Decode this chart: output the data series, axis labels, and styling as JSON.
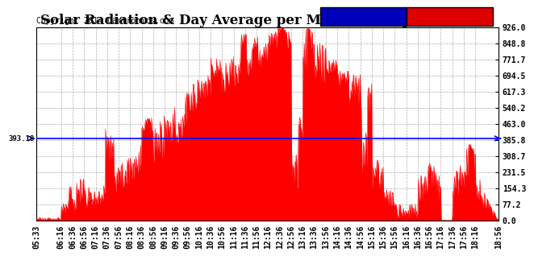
{
  "title": "Solar Radiation & Day Average per Minute  Sun Jun 1  19:05",
  "copyright": "Copyright 2014 Cartronics.com",
  "median_value": 393.18,
  "ymin": 0.0,
  "ymax": 926.0,
  "yticks": [
    0.0,
    77.2,
    154.3,
    231.5,
    308.7,
    385.8,
    463.0,
    540.2,
    617.3,
    694.5,
    771.7,
    848.8,
    926.0
  ],
  "ytick_labels": [
    "0.0",
    "77.2",
    "154.3",
    "231.5",
    "308.7",
    "385.8",
    "463.0",
    "540.2",
    "617.3",
    "694.5",
    "771.7",
    "848.8",
    "926.0"
  ],
  "median_label": "393.18",
  "color_radiation": "#FF0000",
  "color_median": "#0000FF",
  "color_background": "#FFFFFF",
  "color_grid": "#AAAAAA",
  "legend_median_bg": "#0000BB",
  "legend_radiation_bg": "#DD0000",
  "xtick_labels": [
    "05:33",
    "06:16",
    "06:36",
    "06:56",
    "07:16",
    "07:36",
    "07:56",
    "08:16",
    "08:36",
    "08:56",
    "09:16",
    "09:36",
    "09:56",
    "10:16",
    "10:36",
    "10:56",
    "11:16",
    "11:36",
    "11:56",
    "12:16",
    "12:36",
    "12:56",
    "13:16",
    "13:36",
    "13:56",
    "14:16",
    "14:36",
    "14:56",
    "15:16",
    "15:36",
    "15:56",
    "16:16",
    "16:36",
    "16:56",
    "17:16",
    "17:36",
    "17:56",
    "18:16",
    "18:56"
  ],
  "title_fontsize": 12,
  "axis_fontsize": 7,
  "copyright_fontsize": 7
}
